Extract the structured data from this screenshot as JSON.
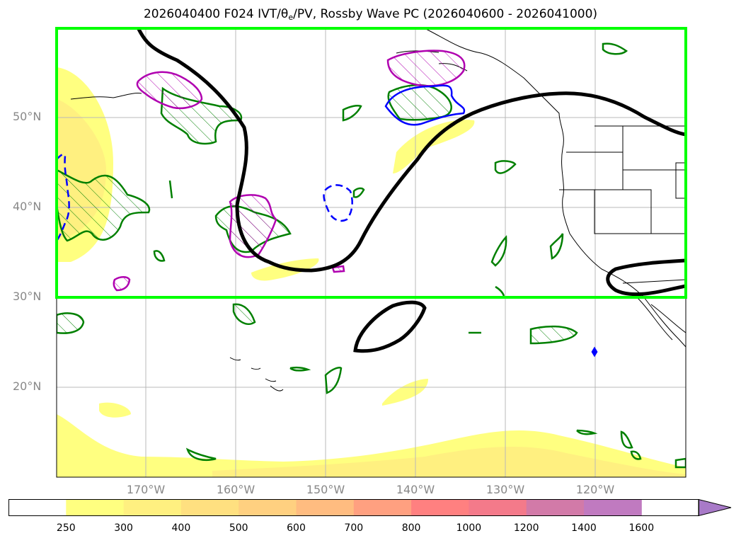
{
  "title": {
    "prefix": "2026040400 F024 IVT/θ",
    "subscript": "e",
    "suffix": "/PV, Rossby Wave PC (2026040600 - 2026041000)"
  },
  "map": {
    "lat_labels": [
      "50°N",
      "40°N",
      "30°N",
      "20°N"
    ],
    "lon_labels": [
      "170°W",
      "160°W",
      "150°W",
      "140°W",
      "130°W",
      "120°W"
    ],
    "lat_range": [
      10,
      60
    ],
    "lon_range": [
      -180,
      -110
    ],
    "highlight_box": {
      "lat_min": 30,
      "lat_max": 60,
      "lon_min": -180,
      "lon_max": -110,
      "color": "#00ff00"
    }
  },
  "colorbar": {
    "ticks": [
      "250",
      "300",
      "400",
      "500",
      "600",
      "700",
      "800",
      "1000",
      "1200",
      "1400",
      "1600"
    ],
    "colors": [
      "#ffffff",
      "#ffff80",
      "#fff080",
      "#ffe080",
      "#ffd080",
      "#ffbc80",
      "#ffa080",
      "#ff8080",
      "#f47a8a",
      "#d27aa8",
      "#c07ac0",
      "#a87ac8"
    ]
  }
}
